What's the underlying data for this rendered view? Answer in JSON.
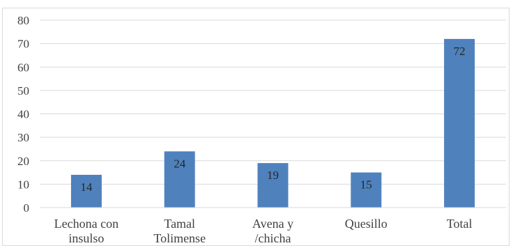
{
  "chart_data": {
    "type": "bar",
    "categories": [
      [
        "Lechona con",
        "insulso"
      ],
      [
        "Tamal",
        "Tolimense"
      ],
      [
        "Avena y",
        "/chicha"
      ],
      [
        "Quesillo"
      ],
      [
        "Total"
      ]
    ],
    "values": [
      14,
      24,
      19,
      15,
      72
    ],
    "data_labels": [
      "14",
      "24",
      "19",
      "15",
      "72"
    ],
    "title": "",
    "xlabel": "",
    "ylabel": "",
    "ylim": [
      0,
      80
    ],
    "yticks": [
      "0",
      "10",
      "20",
      "30",
      "40",
      "50",
      "60",
      "70",
      "80"
    ],
    "grid": true,
    "legend": "none",
    "bar_color": "#4f81bd",
    "grid_color": "#d9d9d9"
  }
}
